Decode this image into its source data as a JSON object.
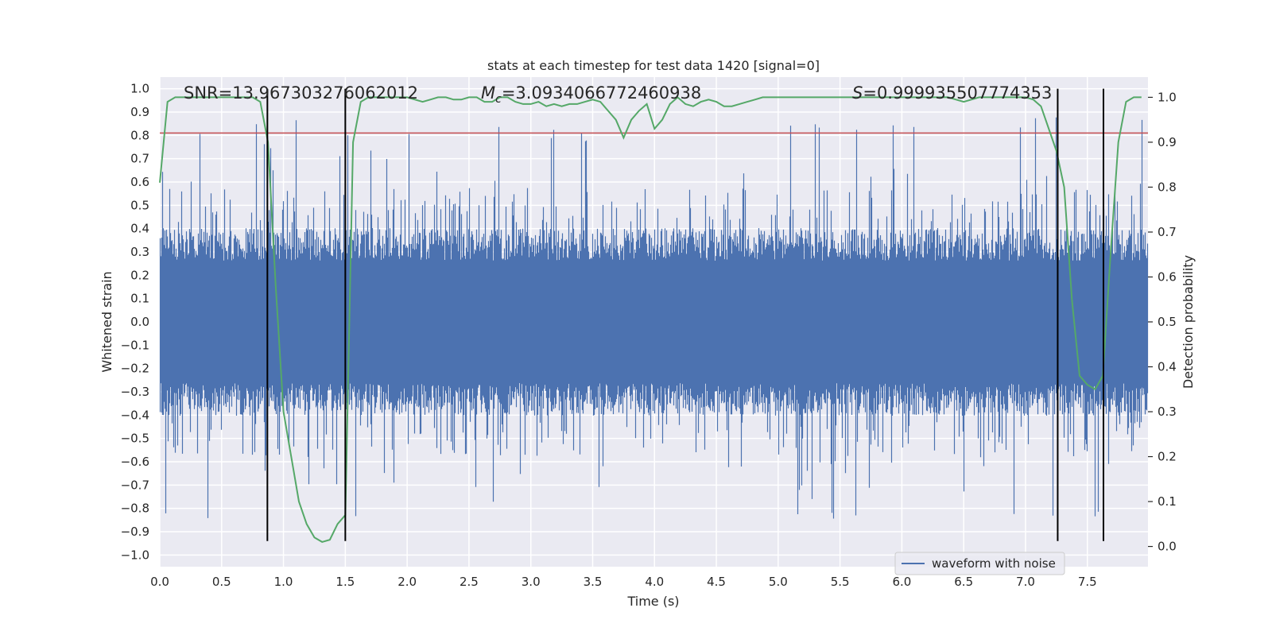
{
  "chart_data": {
    "type": "line",
    "title": "stats at each timestep for test data 1420 [signal=0]",
    "xlabel": "Time (s)",
    "ylabel": "Whitened strain",
    "y2label": "Detection probability",
    "xlim": [
      0.0,
      7.99
    ],
    "ylim": [
      -1.05,
      1.05
    ],
    "y2lim": [
      -0.045,
      1.045
    ],
    "x_ticks": [
      0.0,
      0.5,
      1.0,
      1.5,
      2.0,
      2.5,
      3.0,
      3.5,
      4.0,
      4.5,
      5.0,
      5.5,
      6.0,
      6.5,
      7.0,
      7.5
    ],
    "x_tick_labels": [
      "0.0",
      "0.5",
      "1.0",
      "1.5",
      "2.0",
      "2.5",
      "3.0",
      "3.5",
      "4.0",
      "4.5",
      "5.0",
      "5.5",
      "6.0",
      "6.5",
      "7.0",
      "7.5"
    ],
    "y_ticks": [
      1.0,
      0.9,
      0.8,
      0.7,
      0.6,
      0.5,
      0.4,
      0.3,
      0.2,
      0.1,
      0.0,
      -0.1,
      -0.2,
      -0.3,
      -0.4,
      -0.5,
      -0.6,
      -0.7,
      -0.8,
      -0.9,
      -1.0
    ],
    "y_tick_labels": [
      "1.0",
      "0.9",
      "0.8",
      "0.7",
      "0.6",
      "0.5",
      "0.4",
      "0.3",
      "0.2",
      "0.1",
      "0.0",
      "−0.1",
      "−0.2",
      "−0.3",
      "−0.4",
      "−0.5",
      "−0.6",
      "−0.7",
      "−0.8",
      "−0.9",
      "−1.0"
    ],
    "y2_ticks": [
      1.0,
      0.9,
      0.8,
      0.7,
      0.6,
      0.5,
      0.4,
      0.3,
      0.2,
      0.1,
      0.0
    ],
    "y2_tick_labels": [
      "1.0",
      "0.9",
      "0.8",
      "0.7",
      "0.6",
      "0.5",
      "0.4",
      "0.3",
      "0.2",
      "0.1",
      "0.0"
    ],
    "grid": true,
    "legend": {
      "placement": "lower-right",
      "entries": [
        "waveform with noise"
      ]
    },
    "annotations": {
      "snr": "SNR=13.967303276062012",
      "mc_symbol": "M",
      "mc_subscript": "c",
      "mc_value": "=3.0934066772460938",
      "s_symbol": "S",
      "s_value": "=0.999935507774353"
    },
    "series": [
      {
        "name": "waveform with noise",
        "axis": "left",
        "color": "#4c72b0",
        "sample_rate": 2048,
        "envelope": {
          "typical_abs": 0.35,
          "typical_max": 0.5,
          "extreme_max": 0.98,
          "extreme_min": -0.93
        }
      },
      {
        "axis": "right",
        "color": "#55a868",
        "x": [
          0.0,
          0.0625,
          0.125,
          0.1875,
          0.25,
          0.3125,
          0.375,
          0.4375,
          0.5,
          0.5625,
          0.625,
          0.6875,
          0.75,
          0.8125,
          0.875,
          0.9375,
          1.0,
          1.0625,
          1.125,
          1.1875,
          1.25,
          1.3125,
          1.375,
          1.4375,
          1.5,
          1.5625,
          1.625,
          1.6875,
          1.75,
          1.8125,
          1.875,
          1.9375,
          2.0,
          2.0625,
          2.125,
          2.1875,
          2.25,
          2.3125,
          2.375,
          2.4375,
          2.5,
          2.5625,
          2.625,
          2.6875,
          2.75,
          2.8125,
          2.875,
          2.9375,
          3.0,
          3.0625,
          3.125,
          3.1875,
          3.25,
          3.3125,
          3.375,
          3.4375,
          3.5,
          3.5625,
          3.625,
          3.6875,
          3.75,
          3.8125,
          3.875,
          3.9375,
          4.0,
          4.0625,
          4.125,
          4.1875,
          4.25,
          4.3125,
          4.375,
          4.4375,
          4.5,
          4.5625,
          4.625,
          4.6875,
          4.75,
          4.8125,
          4.875,
          4.9375,
          5.0,
          5.0625,
          5.125,
          5.1875,
          5.25,
          5.3125,
          5.375,
          5.4375,
          5.5,
          5.5625,
          5.625,
          5.6875,
          5.75,
          5.8125,
          5.875,
          5.9375,
          6.0,
          6.0625,
          6.125,
          6.1875,
          6.25,
          6.3125,
          6.375,
          6.4375,
          6.5,
          6.5625,
          6.625,
          6.6875,
          6.75,
          6.8125,
          6.875,
          6.9375,
          7.0,
          7.0625,
          7.125,
          7.1875,
          7.25,
          7.3125,
          7.375,
          7.4375,
          7.5,
          7.5625,
          7.625,
          7.6875,
          7.75,
          7.8125,
          7.875,
          7.9375
        ],
        "values": [
          0.81,
          0.99,
          1.0,
          1.0,
          1.0,
          1.0,
          1.0,
          1.0,
          1.0,
          1.0,
          1.0,
          1.0,
          1.0,
          0.99,
          0.9,
          0.58,
          0.3,
          0.2,
          0.1,
          0.05,
          0.02,
          0.01,
          0.015,
          0.05,
          0.07,
          0.9,
          0.99,
          1.0,
          1.0,
          1.0,
          1.0,
          1.0,
          1.0,
          0.995,
          0.99,
          0.995,
          1.0,
          1.0,
          0.995,
          0.995,
          1.0,
          1.0,
          0.99,
          0.99,
          1.0,
          1.0,
          0.99,
          0.985,
          0.985,
          0.99,
          0.98,
          0.985,
          0.98,
          0.985,
          0.985,
          0.99,
          0.995,
          0.99,
          0.97,
          0.95,
          0.91,
          0.95,
          0.97,
          0.985,
          0.93,
          0.95,
          0.985,
          1.0,
          0.985,
          0.98,
          0.99,
          0.995,
          0.99,
          0.98,
          0.98,
          0.985,
          0.99,
          0.995,
          1.0,
          1.0,
          1.0,
          1.0,
          1.0,
          1.0,
          1.0,
          1.0,
          1.0,
          1.0,
          1.0,
          1.0,
          1.0,
          1.0,
          1.0,
          1.0,
          1.0,
          1.0,
          1.0,
          1.0,
          1.0,
          1.0,
          1.0,
          1.0,
          1.0,
          0.995,
          0.99,
          0.995,
          1.0,
          1.0,
          1.0,
          1.0,
          1.0,
          1.0,
          1.0,
          0.995,
          0.98,
          0.93,
          0.88,
          0.8,
          0.55,
          0.38,
          0.36,
          0.35,
          0.38,
          0.65,
          0.9,
          0.99,
          1.0,
          1.0
        ]
      }
    ],
    "threshold": {
      "axis": "left",
      "value": 0.81,
      "color": "#c44e52"
    },
    "vlines": {
      "x": [
        0.87,
        1.5,
        7.26,
        7.63
      ],
      "y_range": [
        -0.94,
        1.0
      ],
      "color": "#000000"
    }
  }
}
